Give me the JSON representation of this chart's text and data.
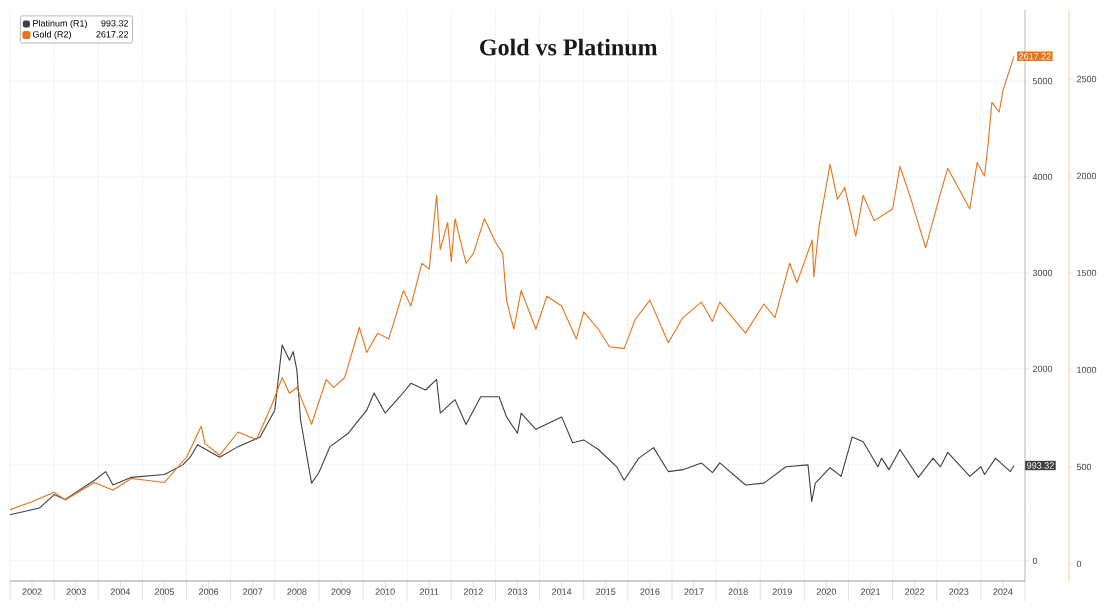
{
  "chart_data": {
    "type": "line",
    "title": "Gold vs Platinum",
    "grid": true,
    "legend": "top left",
    "xlim": [
      "2002-01",
      "2025-01"
    ],
    "xticks": [
      {
        "value": "2002-01",
        "label": null
      },
      {
        "value": "2003-01",
        "label": null
      },
      {
        "value": "2004-01",
        "label": null
      },
      {
        "value": "2005-01",
        "label": null
      },
      {
        "value": "2006-01",
        "label": null
      },
      {
        "value": "2007-01",
        "label": null
      },
      {
        "value": "2008-01",
        "label": null
      },
      {
        "value": "2009-01",
        "label": null
      },
      {
        "value": "2010-01",
        "label": null
      },
      {
        "value": "2011-01",
        "label": null
      },
      {
        "value": "2012-01",
        "label": null
      },
      {
        "value": "2013-01",
        "label": null
      },
      {
        "value": "2014-01",
        "label": null
      },
      {
        "value": "2015-01",
        "label": null
      },
      {
        "value": "2016-01",
        "label": null
      },
      {
        "value": "2017-01",
        "label": null
      },
      {
        "value": "2018-01",
        "label": null
      },
      {
        "value": "2019-01",
        "label": null
      },
      {
        "value": "2020-01",
        "label": null
      },
      {
        "value": "2021-01",
        "label": null
      },
      {
        "value": "2022-01",
        "label": null
      },
      {
        "value": "2023-01",
        "label": null
      },
      {
        "value": "2024-01",
        "label": null
      },
      {
        "value": "2025-01",
        "label": null
      },
      {
        "value": "2002-07",
        "label": "2002"
      },
      {
        "value": "2003-07",
        "label": "2003"
      },
      {
        "value": "2004-07",
        "label": "2004"
      },
      {
        "value": "2005-07",
        "label": "2005"
      },
      {
        "value": "2006-07",
        "label": "2006"
      },
      {
        "value": "2007-07",
        "label": "2007"
      },
      {
        "value": "2008-07",
        "label": "2008"
      },
      {
        "value": "2009-07",
        "label": "2009"
      },
      {
        "value": "2010-07",
        "label": "2010"
      },
      {
        "value": "2011-07",
        "label": "2011"
      },
      {
        "value": "2012-07",
        "label": "2012"
      },
      {
        "value": "2013-07",
        "label": "2013"
      },
      {
        "value": "2014-07",
        "label": "2014"
      },
      {
        "value": "2015-07",
        "label": "2015"
      },
      {
        "value": "2016-07",
        "label": "2016"
      },
      {
        "value": "2017-07",
        "label": "2017"
      },
      {
        "value": "2018-07",
        "label": "2018"
      },
      {
        "value": "2019-07",
        "label": "2019"
      },
      {
        "value": "2020-07",
        "label": "2020"
      },
      {
        "value": "2021-07",
        "label": "2021"
      },
      {
        "value": "2022-07",
        "label": "2022"
      },
      {
        "value": "2023-07",
        "label": "2023"
      },
      {
        "value": "2024-07",
        "label": "2024"
      }
    ],
    "ylim": [
      -210,
      5740
    ],
    "yticks": [
      0,
      {
        "value": 1000,
        "label": null
      },
      2000,
      3000,
      4000,
      5000
    ],
    "y2lim": [
      -88,
      2856
    ],
    "y2ticks": [
      0,
      500,
      1000,
      1500,
      2000,
      2500
    ],
    "series": [
      {
        "name": "Platinum (R1)",
        "color": "#404040",
        "axis": "y",
        "x": [
          "2002-01",
          "2002-09",
          "2003-01",
          "2003-04",
          "2003-12",
          "2004-03",
          "2004-05",
          "2004-10",
          "2005-07",
          "2005-12",
          "2006-02",
          "2006-04",
          "2006-10",
          "2007-03",
          "2007-09",
          "2008-01",
          "2008-03",
          "2008-05",
          "2008-06",
          "2008-07",
          "2008-08",
          "2008-11",
          "2009-01",
          "2009-04",
          "2009-09",
          "2010-02",
          "2010-04",
          "2010-07",
          "2010-11",
          "2011-02",
          "2011-06",
          "2011-09",
          "2011-10",
          "2012-02",
          "2012-05",
          "2012-09",
          "2013-02",
          "2013-04",
          "2013-07",
          "2013-08",
          "2013-12",
          "2014-07",
          "2014-10",
          "2015-01",
          "2015-05",
          "2015-10",
          "2015-12",
          "2016-04",
          "2016-08",
          "2016-12",
          "2017-04",
          "2017-09",
          "2017-12",
          "2018-02",
          "2018-09",
          "2019-02",
          "2019-08",
          "2020-02",
          "2020-03",
          "2020-04",
          "2020-08",
          "2020-11",
          "2021-02",
          "2021-05",
          "2021-09",
          "2021-10",
          "2021-12",
          "2022-03",
          "2022-08",
          "2022-12",
          "2023-02",
          "2023-04",
          "2023-10",
          "2024-01",
          "2024-02",
          "2024-05",
          "2024-09",
          "2024-10"
        ],
        "values": [
          480,
          550,
          690,
          640,
          840,
          930,
          790,
          870,
          900,
          1000,
          1080,
          1210,
          1080,
          1190,
          1290,
          1570,
          2250,
          2090,
          2180,
          1990,
          1470,
          810,
          920,
          1190,
          1330,
          1570,
          1750,
          1540,
          1710,
          1850,
          1780,
          1890,
          1540,
          1680,
          1420,
          1710,
          1710,
          1500,
          1330,
          1540,
          1370,
          1500,
          1230,
          1260,
          1160,
          980,
          840,
          1070,
          1180,
          930,
          950,
          1020,
          920,
          1020,
          790,
          810,
          980,
          1000,
          620,
          810,
          970,
          880,
          1290,
          1240,
          980,
          1070,
          950,
          1160,
          870,
          1070,
          980,
          1130,
          880,
          980,
          900,
          1070,
          930,
          993.32
        ],
        "value_labels": [
          null,
          null,
          null,
          null,
          null,
          null,
          null,
          null,
          null,
          null,
          null,
          null,
          null,
          null,
          null,
          null,
          null,
          null,
          null,
          null,
          null,
          null,
          null,
          null,
          null,
          null,
          null,
          null,
          null,
          null,
          null,
          null,
          null,
          null,
          null,
          null,
          null,
          null,
          null,
          null,
          null,
          null,
          null,
          null,
          null,
          null,
          null,
          null,
          null,
          null,
          null,
          null,
          null,
          null,
          null,
          null,
          null,
          null,
          null,
          null,
          null,
          null,
          null,
          null,
          null,
          null,
          null,
          null,
          null,
          null,
          null,
          null,
          null,
          null,
          null,
          null,
          null,
          "993.32"
        ]
      },
      {
        "name": "Gold (R2)",
        "color": "#e8731a",
        "axis": "y2",
        "x": [
          "2002-01",
          "2002-07",
          "2003-01",
          "2003-04",
          "2003-12",
          "2004-05",
          "2004-10",
          "2005-07",
          "2006-01",
          "2006-05",
          "2006-06",
          "2006-10",
          "2007-03",
          "2007-08",
          "2007-12",
          "2008-03",
          "2008-05",
          "2008-07",
          "2008-11",
          "2009-03",
          "2009-05",
          "2009-08",
          "2009-12",
          "2010-02",
          "2010-05",
          "2010-08",
          "2010-12",
          "2011-02",
          "2011-05",
          "2011-07",
          "2011-09",
          "2011-10",
          "2011-12",
          "2012-01",
          "2012-02",
          "2012-05",
          "2012-07",
          "2012-10",
          "2013-01",
          "2013-03",
          "2013-04",
          "2013-06",
          "2013-08",
          "2013-12",
          "2014-03",
          "2014-07",
          "2014-11",
          "2015-01",
          "2015-05",
          "2015-08",
          "2015-12",
          "2016-03",
          "2016-07",
          "2016-12",
          "2017-04",
          "2017-09",
          "2017-12",
          "2018-02",
          "2018-09",
          "2019-02",
          "2019-05",
          "2019-09",
          "2019-11",
          "2020-03-05",
          "2020-03-19",
          "2020-05",
          "2020-08",
          "2020-10",
          "2020-12",
          "2021-03",
          "2021-05",
          "2021-08",
          "2022-01",
          "2022-03",
          "2022-06",
          "2022-10",
          "2023-02",
          "2023-04",
          "2023-10",
          "2023-12",
          "2024-02",
          "2024-03",
          "2024-04",
          "2024-06",
          "2024-07",
          "2024-10"
        ],
        "values": [
          280,
          320,
          370,
          330,
          420,
          380,
          440,
          420,
          550,
          710,
          620,
          560,
          680,
          640,
          810,
          960,
          880,
          910,
          720,
          950,
          910,
          960,
          1220,
          1090,
          1190,
          1160,
          1410,
          1330,
          1550,
          1520,
          1900,
          1620,
          1760,
          1560,
          1780,
          1550,
          1600,
          1780,
          1660,
          1600,
          1360,
          1210,
          1410,
          1210,
          1380,
          1330,
          1160,
          1300,
          1210,
          1120,
          1110,
          1260,
          1360,
          1140,
          1270,
          1350,
          1250,
          1350,
          1190,
          1340,
          1270,
          1550,
          1450,
          1670,
          1480,
          1740,
          2060,
          1880,
          1940,
          1690,
          1900,
          1770,
          1830,
          2050,
          1880,
          1630,
          1910,
          2040,
          1830,
          2070,
          2000,
          2170,
          2380,
          2330,
          2440,
          2617.22
        ],
        "value_labels": [
          null,
          null,
          null,
          null,
          null,
          null,
          null,
          null,
          null,
          null,
          null,
          null,
          null,
          null,
          null,
          null,
          null,
          null,
          null,
          null,
          null,
          null,
          null,
          null,
          null,
          null,
          null,
          null,
          null,
          null,
          null,
          null,
          null,
          null,
          null,
          null,
          null,
          null,
          null,
          null,
          null,
          null,
          null,
          null,
          null,
          null,
          null,
          null,
          null,
          null,
          null,
          null,
          null,
          null,
          null,
          null,
          null,
          null,
          null,
          null,
          null,
          null,
          null,
          null,
          null,
          null,
          null,
          null,
          null,
          null,
          null,
          null,
          null,
          null,
          null,
          null,
          null,
          null,
          null,
          null,
          null,
          null,
          null,
          null,
          null,
          "2617.22"
        ]
      }
    ]
  }
}
